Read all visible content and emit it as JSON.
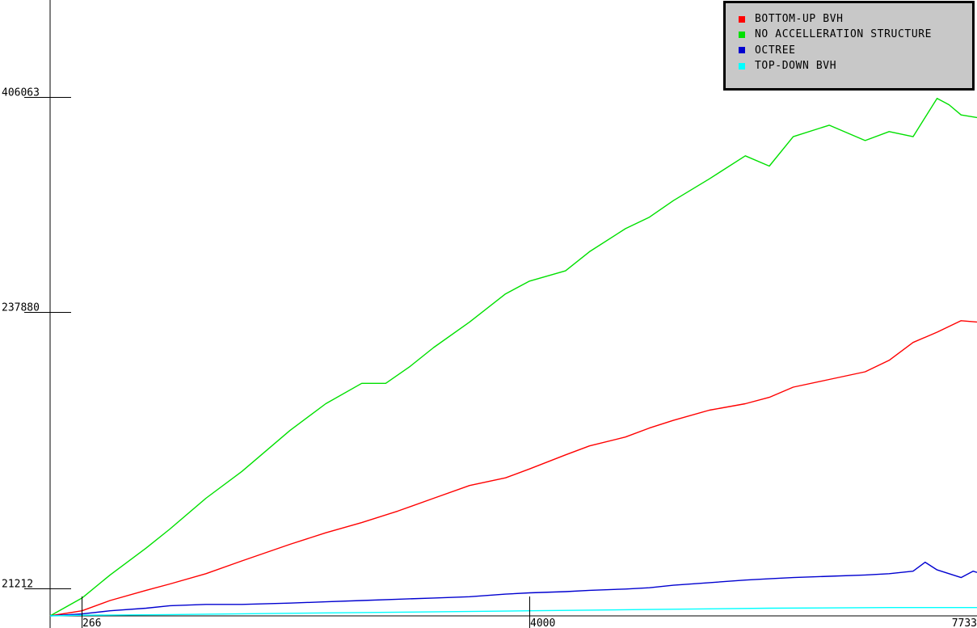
{
  "chart_data": {
    "type": "line",
    "title": "",
    "xlabel": "",
    "ylabel": "",
    "xlim": [
      0,
      7733
    ],
    "ylim": [
      0,
      430000
    ],
    "x_ticks": [
      {
        "value": 266,
        "label": "266"
      },
      {
        "value": 4000,
        "label": "4000"
      },
      {
        "value": 7733,
        "label": "7733"
      }
    ],
    "y_ticks": [
      {
        "value": 21212,
        "label": "21212"
      },
      {
        "value": 237880,
        "label": "237880"
      },
      {
        "value": 406063,
        "label": "406063"
      }
    ],
    "grid": false,
    "legend_position": "top-right",
    "series": [
      {
        "name": "BOTTOM-UP BVH",
        "color": "#ff0000",
        "x": [
          0,
          266,
          500,
          800,
          1000,
          1300,
          1600,
          2000,
          2300,
          2600,
          2900,
          3200,
          3500,
          3800,
          4000,
          4300,
          4500,
          4800,
          5000,
          5200,
          5500,
          5800,
          6000,
          6200,
          6500,
          6800,
          7000,
          7200,
          7400,
          7600,
          7733
        ],
        "y": [
          0,
          4000,
          12000,
          20000,
          25000,
          33000,
          43000,
          56000,
          65000,
          73000,
          82000,
          92000,
          102000,
          108000,
          115000,
          126000,
          133000,
          140000,
          147000,
          153000,
          161000,
          166000,
          171000,
          179000,
          185000,
          191000,
          200000,
          214000,
          222000,
          231000,
          230000
        ]
      },
      {
        "name": "NO ACCELLERATION STRUCTURE",
        "color": "#00e000",
        "x": [
          0,
          266,
          500,
          800,
          1000,
          1300,
          1600,
          2000,
          2300,
          2600,
          2800,
          3000,
          3200,
          3500,
          3800,
          4000,
          4300,
          4500,
          4800,
          5000,
          5200,
          5500,
          5800,
          6000,
          6200,
          6500,
          6800,
          7000,
          7200,
          7400,
          7500,
          7600,
          7733
        ],
        "y": [
          0,
          14000,
          32000,
          53000,
          68000,
          92000,
          113000,
          145000,
          166000,
          182000,
          182000,
          195000,
          210000,
          230000,
          252000,
          262000,
          270000,
          285000,
          303000,
          312000,
          325000,
          342000,
          360000,
          352000,
          375000,
          384000,
          372000,
          379000,
          375000,
          405000,
          400000,
          392000,
          390000
        ]
      },
      {
        "name": "OCTREE",
        "color": "#0000d0",
        "x": [
          0,
          266,
          500,
          800,
          1000,
          1300,
          1600,
          2000,
          2300,
          2600,
          2900,
          3200,
          3500,
          3800,
          4000,
          4300,
          4500,
          4800,
          5000,
          5200,
          5500,
          5800,
          6000,
          6200,
          6500,
          6800,
          7000,
          7200,
          7300,
          7400,
          7600,
          7700,
          7733
        ],
        "y": [
          0,
          1500,
          4000,
          6000,
          8000,
          9000,
          9000,
          10000,
          11000,
          12000,
          13000,
          14000,
          15000,
          17000,
          18000,
          19000,
          20000,
          21000,
          22000,
          24000,
          26000,
          28000,
          29000,
          30000,
          31000,
          32000,
          33000,
          35000,
          42000,
          36000,
          30000,
          35000,
          34000
        ]
      },
      {
        "name": "TOP-DOWN BVH",
        "color": "#00ffff",
        "x": [
          0,
          266,
          1000,
          2000,
          3000,
          4000,
          5000,
          6000,
          7000,
          7733
        ],
        "y": [
          0,
          500,
          1000,
          2000,
          3000,
          4000,
          5000,
          6000,
          6500,
          6500
        ]
      }
    ]
  }
}
